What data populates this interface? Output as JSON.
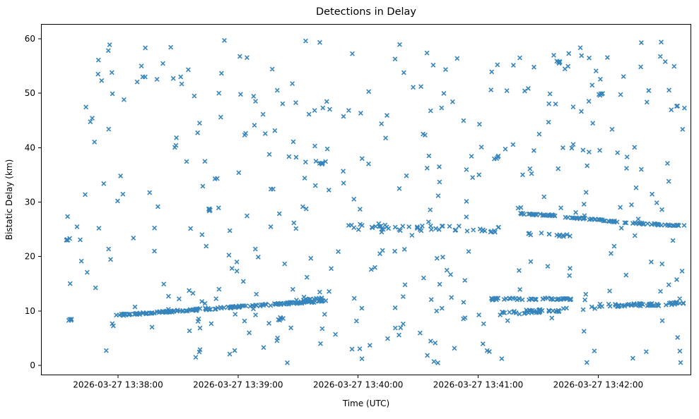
{
  "figure": {
    "title": "Detections in Delay",
    "xlabel": "Time (UTC)",
    "ylabel": "Bistatic Delay (km)"
  },
  "chart_data": {
    "type": "scatter",
    "title": "Detections in Delay",
    "xlabel": "Time (UTC)",
    "ylabel": "Bistatic Delay (km)",
    "grid": false,
    "legend": false,
    "marker": {
      "shape": "x",
      "color": "#1f77b4",
      "size": 7,
      "stroke_width": 1.6,
      "opacity": 0.9
    },
    "x_axis": {
      "unit": "seconds (t=0 at left spine, ~13:37:21 UTC)",
      "lim": [
        0,
        325
      ],
      "ticks": [
        {
          "t": 38.5,
          "label": "2026-03-27 13:38:00"
        },
        {
          "t": 98.5,
          "label": "2026-03-27 13:39:00"
        },
        {
          "t": 158.5,
          "label": "2026-03-27 13:40:00"
        },
        {
          "t": 218.5,
          "label": "2026-03-27 13:41:00"
        },
        {
          "t": 278.5,
          "label": "2026-03-27 13:42:00"
        }
      ]
    },
    "y_axis": {
      "lim": [
        -1.8,
        62.7
      ],
      "ticks": [
        0,
        10,
        20,
        30,
        40,
        50,
        60
      ]
    },
    "seed": 42,
    "background_cloud": {
      "count": 390,
      "t_range": [
        12,
        322
      ],
      "y_range": [
        0.4,
        59.8
      ],
      "description": "uniform random detection noise across full time span, 0-60 km"
    },
    "clusters": [
      {
        "t": 13,
        "y": 23.2,
        "n": 6,
        "spread": 0.25,
        "t_spread": 3
      },
      {
        "t": 15,
        "y": 8.5,
        "n": 5,
        "spread": 0.25,
        "t_spread": 3
      },
      {
        "t": 84,
        "y": 28.6,
        "n": 6,
        "spread": 0.2,
        "t_spread": 3
      },
      {
        "t": 140,
        "y": 37.1,
        "n": 4,
        "spread": 0.3,
        "t_spread": 3
      },
      {
        "t": 120,
        "y": 8.6,
        "n": 4,
        "spread": 0.3,
        "t_spread": 3
      },
      {
        "t": 258,
        "y": 55.6,
        "n": 4,
        "spread": 0.3,
        "t_spread": 3
      },
      {
        "t": 280,
        "y": 49.8,
        "n": 5,
        "spread": 0.25,
        "t_spread": 3
      },
      {
        "t": 228,
        "y": 38.2,
        "n": 4,
        "spread": 0.3,
        "t_spread": 3
      }
    ],
    "tracks": [
      {
        "name": "low-rising-track",
        "t": [
          37,
          143
        ],
        "y": [
          9.2,
          11.9
        ],
        "n": 170,
        "jitter": 0.16
      },
      {
        "name": "low-companion",
        "t": [
          127,
          146
        ],
        "y": [
          12.0,
          12.4
        ],
        "n": 12,
        "jitter": 0.15
      },
      {
        "name": "mid-loose-band",
        "t": [
          154,
          230
        ],
        "y": [
          25.6,
          24.9
        ],
        "n": 46,
        "jitter": 0.6
      },
      {
        "name": "mid-desc-seg-1",
        "t": [
          239,
          258
        ],
        "y": [
          27.9,
          27.5
        ],
        "n": 30,
        "jitter": 0.12
      },
      {
        "name": "mid-desc-seg-2",
        "t": [
          262,
          288
        ],
        "y": [
          27.3,
          26.4
        ],
        "n": 34,
        "jitter": 0.12
      },
      {
        "name": "mid-desc-seg-3",
        "t": [
          292,
          322
        ],
        "y": [
          26.2,
          25.6
        ],
        "n": 34,
        "jitter": 0.12
      },
      {
        "name": "short-24km-track",
        "t": [
          243,
          267
        ],
        "y": [
          24.2,
          23.8
        ],
        "n": 13,
        "jitter": 0.28
      },
      {
        "name": "low-right-rising",
        "t": [
          224,
          322
        ],
        "y": [
          9.4,
          11.6
        ],
        "n": 55,
        "jitter": 0.3
      },
      {
        "name": "low-right-flat",
        "t": [
          225,
          266
        ],
        "y": [
          12.2,
          12.2
        ],
        "n": 48,
        "jitter": 0.18
      },
      {
        "name": "low-right-11km",
        "t": [
          275,
          322
        ],
        "y": [
          11.0,
          11.3
        ],
        "n": 34,
        "jitter": 0.25
      },
      {
        "name": "low-right-10km",
        "t": [
          242,
          258
        ],
        "y": [
          10.1,
          9.9
        ],
        "n": 14,
        "jitter": 0.25
      }
    ]
  }
}
